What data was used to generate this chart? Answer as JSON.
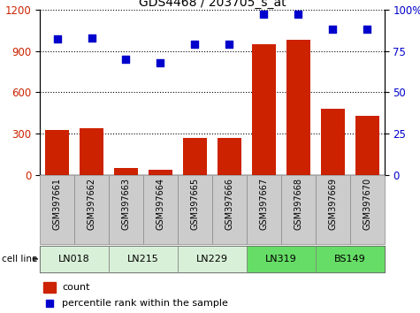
{
  "title": "GDS4468 / 203705_s_at",
  "samples": [
    "GSM397661",
    "GSM397662",
    "GSM397663",
    "GSM397664",
    "GSM397665",
    "GSM397666",
    "GSM397667",
    "GSM397668",
    "GSM397669",
    "GSM397670"
  ],
  "counts": [
    330,
    340,
    55,
    40,
    270,
    270,
    950,
    980,
    480,
    430
  ],
  "percentile_ranks": [
    82,
    83,
    70,
    68,
    79,
    79,
    97,
    97,
    88,
    88
  ],
  "cell_lines": [
    {
      "name": "LN018",
      "samples": [
        0,
        1
      ],
      "color": "#d8f0d8"
    },
    {
      "name": "LN215",
      "samples": [
        2,
        3
      ],
      "color": "#d8f0d8"
    },
    {
      "name": "LN229",
      "samples": [
        4,
        5
      ],
      "color": "#d8f0d8"
    },
    {
      "name": "LN319",
      "samples": [
        6,
        7
      ],
      "color": "#66dd66"
    },
    {
      "name": "BS149",
      "samples": [
        8,
        9
      ],
      "color": "#66dd66"
    }
  ],
  "bar_color": "#cc2200",
  "scatter_color": "#0000cc",
  "left_ylim": [
    0,
    1200
  ],
  "left_yticks": [
    0,
    300,
    600,
    900,
    1200
  ],
  "right_ylim": [
    0,
    100
  ],
  "right_yticks": [
    0,
    25,
    50,
    75,
    100
  ],
  "sample_bg_color": "#cccccc",
  "sample_border_color": "#888888"
}
